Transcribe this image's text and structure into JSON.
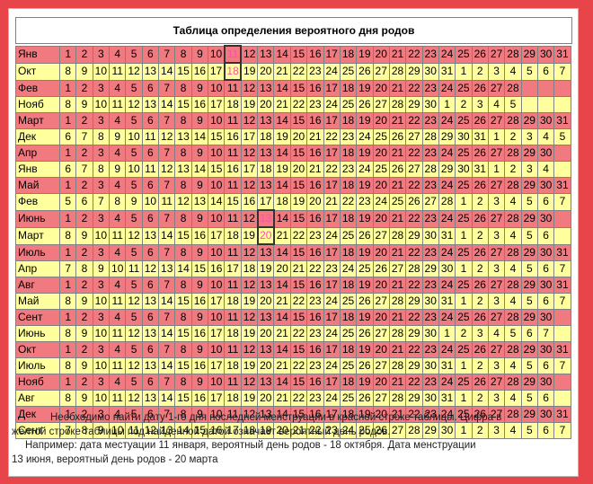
{
  "title": "Таблица определения вероятного дня родов",
  "rows": [
    {
      "color": "red",
      "month": "Янв",
      "cells": [
        "1",
        "2",
        "3",
        "4",
        "5",
        "6",
        "7",
        "8",
        "9",
        "10",
        "11",
        "12",
        "13",
        "14",
        "15",
        "16",
        "17",
        "18",
        "19",
        "20",
        "21",
        "22",
        "23",
        "24",
        "25",
        "26",
        "27",
        "28",
        "29",
        "30",
        "31"
      ]
    },
    {
      "color": "yellow",
      "month": "Окт",
      "cells": [
        "8",
        "9",
        "10",
        "11",
        "12",
        "13",
        "14",
        "15",
        "16",
        "17",
        "18",
        "19",
        "20",
        "21",
        "22",
        "23",
        "24",
        "25",
        "26",
        "27",
        "28",
        "29",
        "30",
        "31",
        "1",
        "2",
        "3",
        "4",
        "5",
        "6",
        "7"
      ]
    },
    {
      "color": "red",
      "month": "Фев",
      "cells": [
        "1",
        "2",
        "3",
        "4",
        "5",
        "6",
        "7",
        "8",
        "9",
        "10",
        "11",
        "12",
        "13",
        "14",
        "15",
        "16",
        "17",
        "18",
        "19",
        "20",
        "21",
        "22",
        "23",
        "24",
        "25",
        "26",
        "27",
        "28",
        "",
        "",
        ""
      ]
    },
    {
      "color": "yellow",
      "month": "Нояб",
      "cells": [
        "8",
        "9",
        "10",
        "11",
        "12",
        "13",
        "14",
        "15",
        "16",
        "17",
        "18",
        "19",
        "20",
        "21",
        "22",
        "23",
        "24",
        "25",
        "26",
        "27",
        "28",
        "29",
        "30",
        "1",
        "2",
        "3",
        "4",
        "5",
        "",
        "",
        ""
      ]
    },
    {
      "color": "red",
      "month": "Март",
      "cells": [
        "1",
        "2",
        "3",
        "4",
        "5",
        "6",
        "7",
        "8",
        "9",
        "10",
        "11",
        "12",
        "13",
        "14",
        "15",
        "16",
        "17",
        "18",
        "19",
        "20",
        "21",
        "22",
        "23",
        "24",
        "25",
        "26",
        "27",
        "28",
        "29",
        "30",
        "31"
      ]
    },
    {
      "color": "yellow",
      "month": "Дек",
      "cells": [
        "6",
        "7",
        "8",
        "9",
        "10",
        "11",
        "12",
        "13",
        "14",
        "15",
        "16",
        "17",
        "18",
        "19",
        "20",
        "21",
        "22",
        "23",
        "24",
        "25",
        "26",
        "27",
        "28",
        "29",
        "30",
        "31",
        "1",
        "2",
        "3",
        "4",
        "5"
      ]
    },
    {
      "color": "red",
      "month": "Апр",
      "cells": [
        "1",
        "2",
        "3",
        "4",
        "5",
        "6",
        "7",
        "8",
        "9",
        "10",
        "11",
        "12",
        "13",
        "14",
        "15",
        "16",
        "17",
        "18",
        "19",
        "20",
        "21",
        "22",
        "23",
        "24",
        "25",
        "26",
        "27",
        "28",
        "29",
        "30",
        ""
      ]
    },
    {
      "color": "yellow",
      "month": "Янв",
      "cells": [
        "6",
        "7",
        "8",
        "9",
        "10",
        "11",
        "12",
        "13",
        "14",
        "15",
        "16",
        "17",
        "18",
        "19",
        "20",
        "21",
        "22",
        "23",
        "24",
        "25",
        "26",
        "27",
        "28",
        "29",
        "30",
        "31",
        "1",
        "2",
        "3",
        "4",
        ""
      ]
    },
    {
      "color": "red",
      "month": "Май",
      "cells": [
        "1",
        "2",
        "3",
        "4",
        "5",
        "6",
        "7",
        "8",
        "9",
        "10",
        "11",
        "12",
        "13",
        "14",
        "15",
        "16",
        "17",
        "18",
        "19",
        "20",
        "21",
        "22",
        "23",
        "24",
        "25",
        "26",
        "27",
        "28",
        "29",
        "30",
        "31"
      ]
    },
    {
      "color": "yellow",
      "month": "Фев",
      "cells": [
        "5",
        "6",
        "7",
        "8",
        "9",
        "10",
        "11",
        "12",
        "13",
        "14",
        "15",
        "16",
        "17",
        "18",
        "19",
        "20",
        "21",
        "22",
        "23",
        "24",
        "25",
        "26",
        "27",
        "28",
        "1",
        "2",
        "3",
        "4",
        "5",
        "6",
        "7"
      ]
    },
    {
      "color": "red",
      "month": "Июнь",
      "cells": [
        "1",
        "2",
        "3",
        "4",
        "5",
        "6",
        "7",
        "8",
        "9",
        "10",
        "11",
        "12",
        "13",
        "14",
        "15",
        "16",
        "17",
        "18",
        "19",
        "20",
        "21",
        "22",
        "23",
        "24",
        "25",
        "26",
        "27",
        "28",
        "29",
        "30",
        ""
      ]
    },
    {
      "color": "yellow",
      "month": "Март",
      "cells": [
        "8",
        "9",
        "10",
        "11",
        "12",
        "13",
        "14",
        "15",
        "16",
        "17",
        "18",
        "19",
        "20",
        "21",
        "22",
        "23",
        "24",
        "25",
        "26",
        "27",
        "28",
        "29",
        "30",
        "31",
        "1",
        "2",
        "3",
        "4",
        "5",
        "6",
        ""
      ]
    },
    {
      "color": "red",
      "month": "Июль",
      "cells": [
        "1",
        "2",
        "3",
        "4",
        "5",
        "6",
        "7",
        "8",
        "9",
        "10",
        "11",
        "12",
        "13",
        "14",
        "15",
        "16",
        "17",
        "18",
        "19",
        "20",
        "21",
        "22",
        "23",
        "24",
        "25",
        "26",
        "27",
        "28",
        "29",
        "30",
        "31"
      ]
    },
    {
      "color": "yellow",
      "month": "Апр",
      "cells": [
        "7",
        "8",
        "9",
        "10",
        "11",
        "12",
        "13",
        "14",
        "15",
        "16",
        "17",
        "18",
        "19",
        "20",
        "21",
        "22",
        "23",
        "24",
        "25",
        "26",
        "27",
        "28",
        "29",
        "30",
        "1",
        "2",
        "3",
        "4",
        "5",
        "6",
        "7"
      ]
    },
    {
      "color": "red",
      "month": "Авг",
      "cells": [
        "1",
        "2",
        "3",
        "4",
        "5",
        "6",
        "7",
        "8",
        "9",
        "10",
        "11",
        "12",
        "13",
        "14",
        "15",
        "16",
        "17",
        "18",
        "19",
        "20",
        "21",
        "22",
        "23",
        "24",
        "25",
        "26",
        "27",
        "28",
        "29",
        "30",
        "31"
      ]
    },
    {
      "color": "yellow",
      "month": "Май",
      "cells": [
        "8",
        "9",
        "10",
        "11",
        "12",
        "13",
        "14",
        "15",
        "16",
        "17",
        "18",
        "19",
        "20",
        "21",
        "22",
        "23",
        "24",
        "25",
        "26",
        "27",
        "28",
        "29",
        "30",
        "31",
        "1",
        "2",
        "3",
        "4",
        "5",
        "6",
        "7"
      ]
    },
    {
      "color": "red",
      "month": "Сент",
      "cells": [
        "1",
        "2",
        "3",
        "4",
        "5",
        "6",
        "7",
        "8",
        "9",
        "10",
        "11",
        "12",
        "13",
        "14",
        "15",
        "16",
        "17",
        "18",
        "19",
        "20",
        "21",
        "22",
        "23",
        "24",
        "25",
        "26",
        "27",
        "28",
        "29",
        "30",
        ""
      ]
    },
    {
      "color": "yellow",
      "month": "Июнь",
      "cells": [
        "8",
        "9",
        "10",
        "11",
        "12",
        "13",
        "14",
        "15",
        "16",
        "17",
        "18",
        "19",
        "20",
        "21",
        "22",
        "23",
        "24",
        "25",
        "26",
        "27",
        "28",
        "29",
        "30",
        "1",
        "2",
        "3",
        "4",
        "5",
        "6",
        "7",
        ""
      ]
    },
    {
      "color": "red",
      "month": "Окт",
      "cells": [
        "1",
        "2",
        "3",
        "4",
        "5",
        "6",
        "7",
        "8",
        "9",
        "10",
        "11",
        "12",
        "13",
        "14",
        "15",
        "16",
        "17",
        "18",
        "19",
        "20",
        "21",
        "22",
        "23",
        "24",
        "25",
        "26",
        "27",
        "28",
        "29",
        "30",
        "31"
      ]
    },
    {
      "color": "yellow",
      "month": "Июль",
      "cells": [
        "8",
        "9",
        "10",
        "11",
        "12",
        "13",
        "14",
        "15",
        "16",
        "17",
        "18",
        "19",
        "20",
        "21",
        "22",
        "23",
        "24",
        "25",
        "26",
        "27",
        "28",
        "29",
        "30",
        "31",
        "1",
        "2",
        "3",
        "4",
        "5",
        "6",
        "7"
      ]
    },
    {
      "color": "red",
      "month": "Нояб",
      "cells": [
        "1",
        "2",
        "3",
        "4",
        "5",
        "6",
        "7",
        "8",
        "9",
        "10",
        "11",
        "12",
        "13",
        "14",
        "15",
        "16",
        "17",
        "18",
        "19",
        "20",
        "21",
        "22",
        "23",
        "24",
        "25",
        "26",
        "27",
        "28",
        "29",
        "30",
        ""
      ]
    },
    {
      "color": "yellow",
      "month": "Авг",
      "cells": [
        "8",
        "9",
        "10",
        "11",
        "12",
        "13",
        "14",
        "15",
        "16",
        "17",
        "18",
        "19",
        "20",
        "21",
        "22",
        "23",
        "24",
        "25",
        "26",
        "27",
        "28",
        "29",
        "30",
        "31",
        "1",
        "2",
        "3",
        "4",
        "5",
        "6",
        ""
      ]
    },
    {
      "color": "red",
      "month": "Дек",
      "cells": [
        "1",
        "2",
        "3",
        "4",
        "5",
        "6",
        "7",
        "8",
        "9",
        "10",
        "11",
        "12",
        "13",
        "14",
        "15",
        "16",
        "17",
        "18",
        "19",
        "20",
        "21",
        "22",
        "23",
        "24",
        "25",
        "26",
        "27",
        "28",
        "29",
        "30",
        "31"
      ]
    },
    {
      "color": "yellow",
      "month": "Сент",
      "cells": [
        "7",
        "8",
        "9",
        "10",
        "11",
        "12",
        "13",
        "14",
        "15",
        "16",
        "17",
        "18",
        "19",
        "20",
        "21",
        "22",
        "23",
        "24",
        "25",
        "26",
        "27",
        "28",
        "29",
        "30",
        "1",
        "2",
        "3",
        "4",
        "5",
        "6",
        "7"
      ]
    }
  ],
  "highlights": [
    {
      "row": 0,
      "col": 10
    },
    {
      "row": 1,
      "col": 10
    },
    {
      "row": 10,
      "col": 12
    },
    {
      "row": 11,
      "col": 12
    }
  ],
  "notes": {
    "line1": "Необходимо найти дату 1-го дня последней менструации  в красной строке таблицы. Цифра в",
    "line2": "желтой строке таблицы под найденной датой означает вероятный день родов.",
    "line3": "Например: дата местуации 11 января, вероятный день родов - 18 октября. Дата менструации",
    "line4": "13 июня, вероятный день родов - 20 марта"
  },
  "colors": {
    "background": "#e8454a",
    "red_row": "#f07a80",
    "yellow_row": "#ffff9e"
  }
}
